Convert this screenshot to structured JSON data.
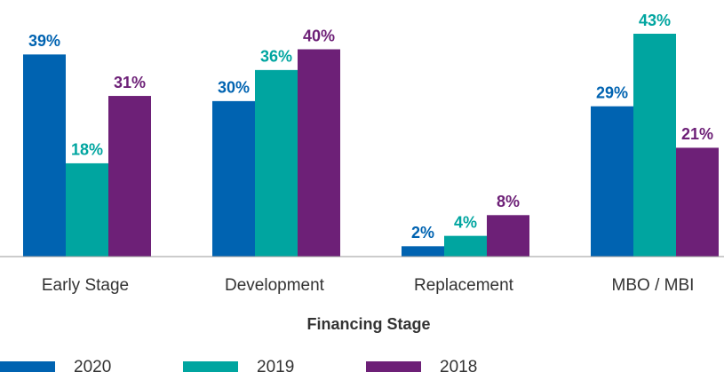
{
  "chart_data": {
    "type": "bar",
    "x_label": "Financing Stage",
    "categories": [
      "Early Stage",
      "Development",
      "Replacement",
      "MBO / MBI"
    ],
    "series": [
      {
        "name": "2020",
        "color": "#0063b1",
        "values": [
          39,
          30,
          2,
          29
        ],
        "value_labels": [
          "39%",
          "30%",
          "2%",
          "29%"
        ]
      },
      {
        "name": "2019",
        "color": "#00a5a0",
        "values": [
          18,
          36,
          4,
          43
        ],
        "value_labels": [
          "18%",
          "36%",
          "4%",
          "43%"
        ]
      },
      {
        "name": "2018",
        "color": "#6d2077",
        "values": [
          31,
          40,
          8,
          21
        ],
        "value_labels": [
          "31%",
          "40%",
          "8%",
          "21%"
        ]
      }
    ]
  }
}
